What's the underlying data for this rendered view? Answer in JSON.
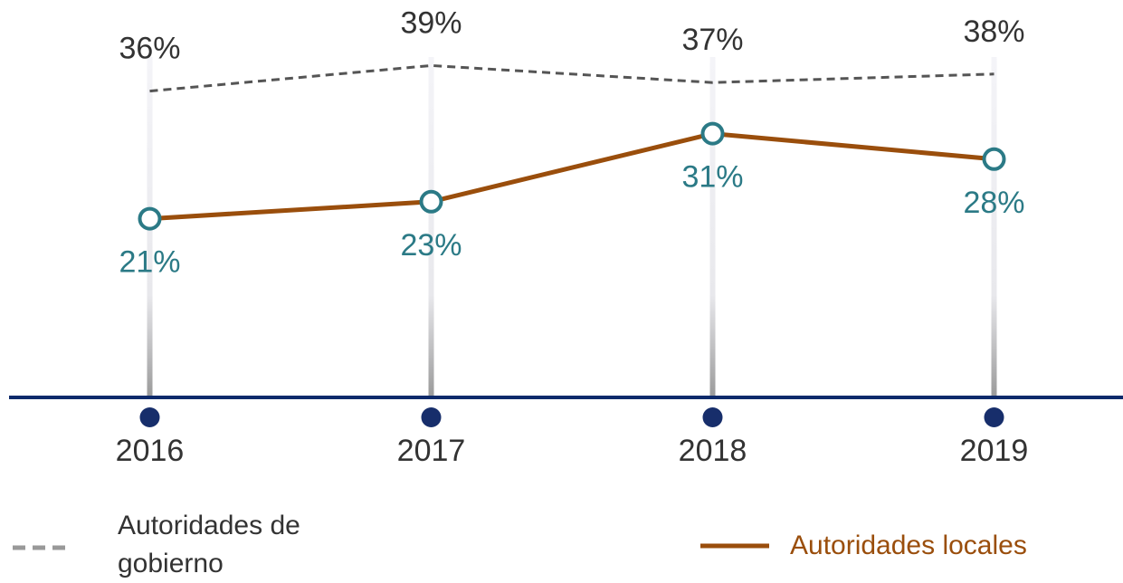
{
  "chart_data": {
    "type": "line",
    "categories": [
      "2016",
      "2017",
      "2018",
      "2019"
    ],
    "series": [
      {
        "name": "Autoridades de gobierno",
        "color": "#555555",
        "dash": true,
        "values": [
          36,
          39,
          37,
          38
        ],
        "value_labels": [
          "36%",
          "39%",
          "37%",
          "38%"
        ],
        "label_color": "#333333",
        "label_position": "above"
      },
      {
        "name": "Autoridades locales",
        "color": "#9a4e0c",
        "dash": false,
        "marker_color": "#2b7a86",
        "values": [
          21,
          23,
          31,
          28
        ],
        "value_labels": [
          "21%",
          "23%",
          "31%",
          "28%"
        ],
        "label_color": "#2b7a86",
        "label_position": "below"
      }
    ],
    "ylim": [
      0,
      40
    ]
  }
}
